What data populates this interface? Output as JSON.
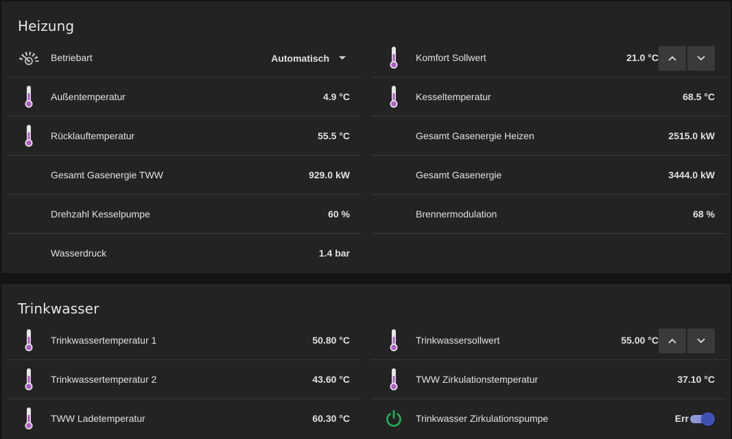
{
  "heizung": {
    "title": "Heizung",
    "left": [
      {
        "label": "Betriebart",
        "select_value": "Automatisch",
        "icon": "gauge-icon"
      },
      {
        "label": "Außentemperatur",
        "value": "4.9 °C",
        "icon": "thermometer-icon"
      },
      {
        "label": "Rücklauftemperatur",
        "value": "55.5 °C",
        "icon": "thermometer-icon"
      },
      {
        "label": "Gesamt Gasenergie TWW",
        "value": "929.0 kW"
      },
      {
        "label": "Drehzahl Kesselpumpe",
        "value": "60 %"
      },
      {
        "label": "Wasserdruck",
        "value": "1.4 bar"
      }
    ],
    "right": [
      {
        "label": "Komfort Sollwert",
        "value": "21.0 °C",
        "icon": "thermometer-icon"
      },
      {
        "label": "Kesseltemperatur",
        "value": "68.5 °C",
        "icon": "thermometer-icon"
      },
      {
        "label": "Gesamt Gasenergie Heizen",
        "value": "2515.0 kW"
      },
      {
        "label": "Gesamt Gasenergie",
        "value": "3444.0 kW"
      },
      {
        "label": "Brennermodulation",
        "value": "68 %"
      }
    ]
  },
  "trinkwasser": {
    "title": "Trinkwasser",
    "left": [
      {
        "label": "Trinkwassertemperatur 1",
        "value": "50.80 °C",
        "icon": "thermometer-icon"
      },
      {
        "label": "Trinkwassertemperatur 2",
        "value": "43.60 °C",
        "icon": "thermometer-icon"
      },
      {
        "label": "TWW Ladetemperatur",
        "value": "60.30 °C",
        "icon": "thermometer-icon"
      }
    ],
    "right": [
      {
        "label": "Trinkwassersollwert",
        "value": "55.00 °C",
        "icon": "thermometer-icon"
      },
      {
        "label": "TWW Zirkulationstemperatur",
        "value": "37.10 °C",
        "icon": "thermometer-icon"
      },
      {
        "label": "Trinkwasser Zirkulationspumpe",
        "value": "Err",
        "icon": "power-icon",
        "toggle_on": true
      }
    ]
  },
  "colors": {
    "card_bg": "#232323",
    "page_bg": "#141414",
    "thermometer_fill": "#b05cc6",
    "power_icon": "#1fb45a",
    "toggle_knob": "#3f51b5",
    "toggle_track": "#8d97d8"
  }
}
